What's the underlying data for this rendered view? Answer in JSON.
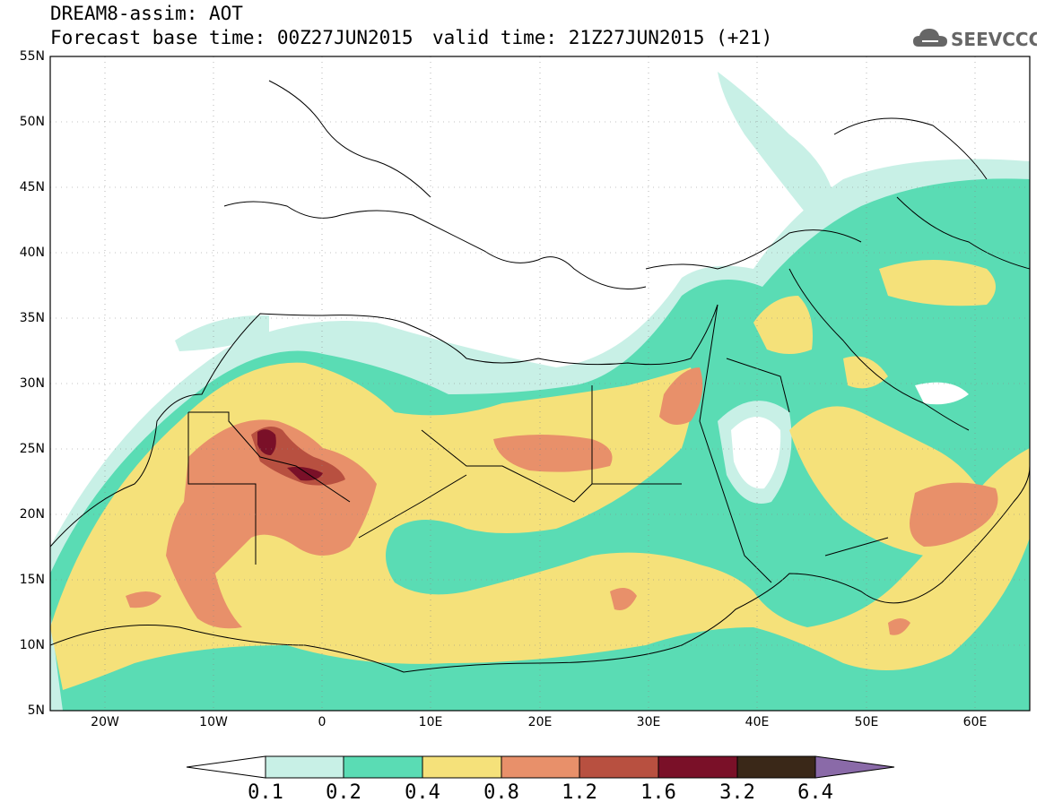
{
  "header": {
    "title": "DREAM8-assim: AOT",
    "base_time": "Forecast base time: 00Z27JUN2015",
    "valid_time": "valid time: 21Z27JUN2015 (+21)",
    "logo_text": "SEEVCCC",
    "logo_icon": "cloud-icon"
  },
  "map": {
    "lat_labels": [
      "55N",
      "50N",
      "45N",
      "40N",
      "35N",
      "30N",
      "25N",
      "20N",
      "15N",
      "10N",
      "5N"
    ],
    "lon_labels": [
      "20W",
      "10W",
      "0",
      "10E",
      "20E",
      "30E",
      "40E",
      "50E",
      "60E"
    ],
    "lat_range": [
      5,
      55
    ],
    "lon_range": [
      -25,
      65
    ]
  },
  "colorbar": {
    "levels": [
      "0.1",
      "0.2",
      "0.4",
      "0.8",
      "1.2",
      "1.6",
      "3.2",
      "6.4"
    ],
    "colors": [
      "#ffffff",
      "#c8f0e6",
      "#5adcb4",
      "#f5e17a",
      "#e8906a",
      "#b85040",
      "#7a1028",
      "#3a2818",
      "#8a6aa8"
    ]
  }
}
